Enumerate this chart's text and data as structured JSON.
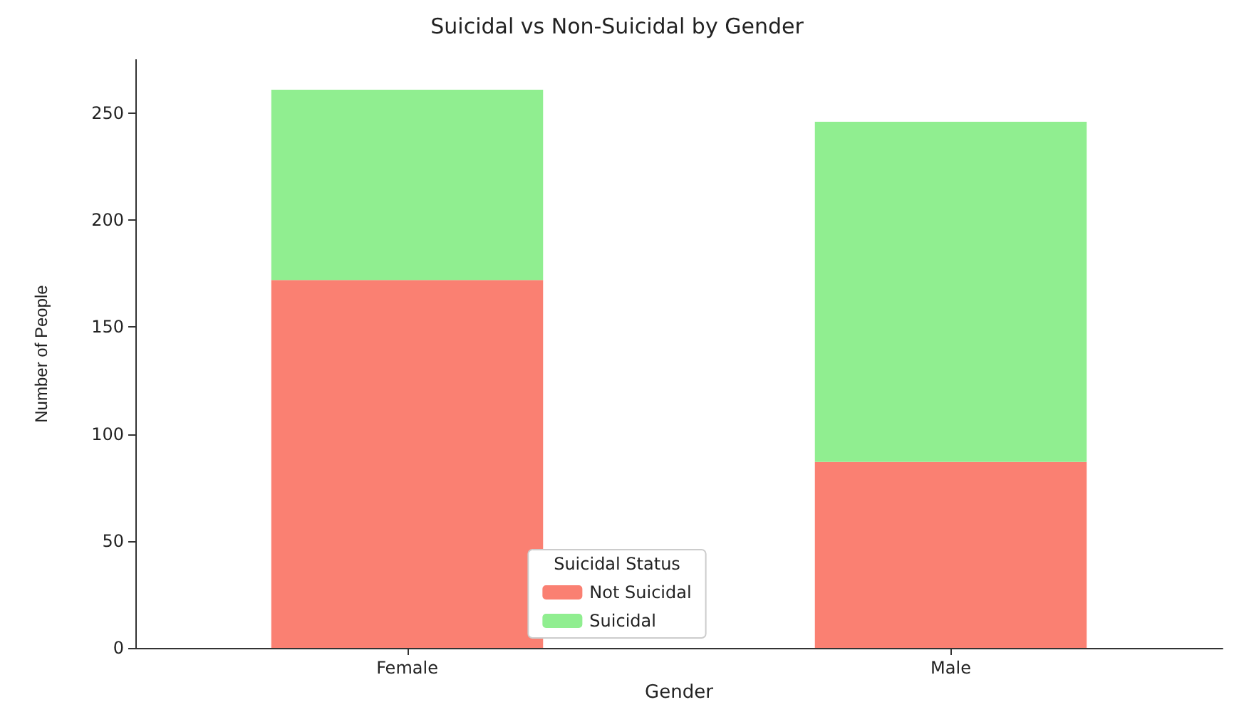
{
  "chart_data": {
    "type": "bar",
    "title": "Suicidal vs Non-Suicidal by Gender",
    "xlabel": "Gender",
    "ylabel": "Number of People",
    "legend_title": "Suicidal Status",
    "categories": [
      "Female",
      "Male"
    ],
    "series": [
      {
        "name": "Not Suicidal",
        "color": "#fa8072",
        "values": [
          172,
          87
        ]
      },
      {
        "name": "Suicidal",
        "color": "#90ee90",
        "values": [
          89,
          159
        ]
      }
    ],
    "stacked": true,
    "ylim": [
      0,
      275
    ],
    "yticks": [
      0,
      50,
      100,
      150,
      200,
      250
    ],
    "grid": false,
    "legend": "bottom"
  }
}
